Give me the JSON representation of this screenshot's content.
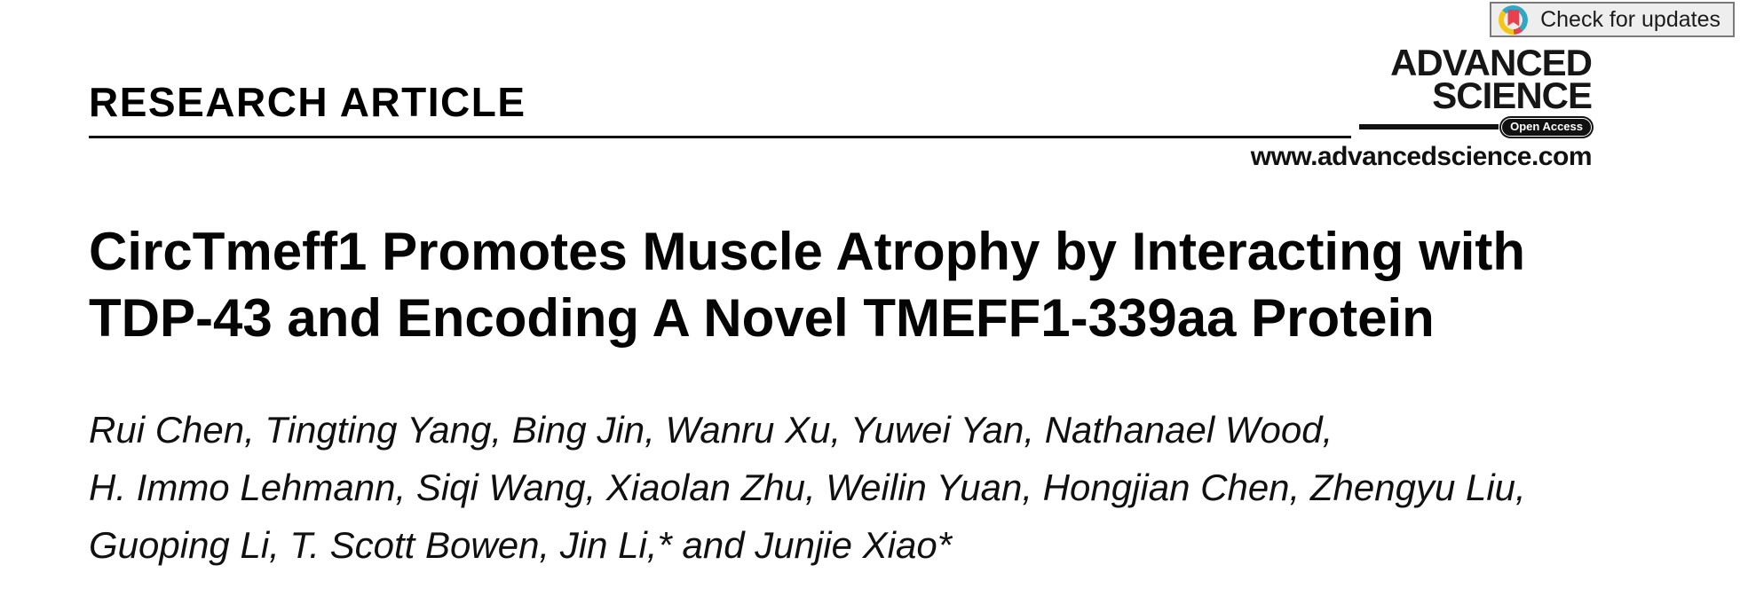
{
  "article": {
    "type_label": "RESEARCH ARTICLE",
    "title_lines": [
      "CircTmeff1 Promotes Muscle Atrophy by Interacting with",
      "TDP-43 and Encoding A Novel TMEFF1-339aa Protein"
    ],
    "author_lines": [
      "Rui Chen, Tingting Yang, Bing Jin, Wanru Xu, Yuwei Yan, Nathanael Wood,",
      "H. Immo Lehmann, Siqi Wang, Xiaolan Zhu, Weilin Yuan, Hongjian Chen, Zhengyu Liu,",
      "Guoping Li, T. Scott Bowen, Jin Li,* and Junjie Xiao*"
    ]
  },
  "journal": {
    "name_line1": "ADVANCED",
    "name_line2": "SCIENCE",
    "open_access_label": "Open Access",
    "website": "www.advancedscience.com"
  },
  "update_badge": {
    "label": "Check for updates",
    "icon": "crossmark-icon",
    "colors": {
      "ring_teal": "#2fa8c5",
      "ring_yellow": "#f3c713",
      "bookmark_red": "#e8414d",
      "background": "#eeeeee",
      "border": "#7a7a7a"
    }
  },
  "colors": {
    "text": "#0a0a0a",
    "background": "#ffffff",
    "rule": "#111111"
  }
}
